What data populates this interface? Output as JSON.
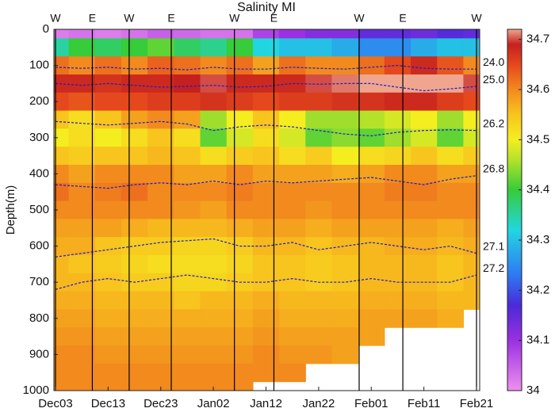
{
  "chart_data": {
    "type": "heatmap",
    "title": "Salinity MI",
    "y_label": "Depth(m)",
    "xlim": [
      -0.3,
      80.6
    ],
    "xticks": [
      {
        "value": 0,
        "label": "Dec03"
      },
      {
        "value": 10,
        "label": "Dec13"
      },
      {
        "value": 20,
        "label": "Dec23"
      },
      {
        "value": 30,
        "label": "Jan02"
      },
      {
        "value": 40,
        "label": "Jan12"
      },
      {
        "value": 50,
        "label": "Jan22"
      },
      {
        "value": 60,
        "label": "Feb01"
      },
      {
        "value": 70,
        "label": "Feb11"
      },
      {
        "value": 80,
        "label": "Feb21"
      }
    ],
    "ylim": [
      0,
      1000
    ],
    "y_reversed": true,
    "yticks": [
      0,
      100,
      200,
      300,
      400,
      500,
      600,
      700,
      800,
      900,
      1000
    ],
    "clim": [
      34,
      34.72
    ],
    "cticks": [
      34,
      34.1,
      34.2,
      34.3,
      34.4,
      34.5,
      34.6,
      34.7
    ],
    "colormap": [
      {
        "value": 34.0,
        "color": "#ee90ee"
      },
      {
        "value": 34.1,
        "color": "#9b30e0"
      },
      {
        "value": 34.17,
        "color": "#4a2ad8"
      },
      {
        "value": 34.23,
        "color": "#2f78f2"
      },
      {
        "value": 34.32,
        "color": "#22d6e0"
      },
      {
        "value": 34.4,
        "color": "#36cc3a"
      },
      {
        "value": 34.46,
        "color": "#b4e22a"
      },
      {
        "value": 34.5,
        "color": "#f4ee20"
      },
      {
        "value": 34.55,
        "color": "#f8c41e"
      },
      {
        "value": 34.6,
        "color": "#f28a1e"
      },
      {
        "value": 34.65,
        "color": "#e4481c"
      },
      {
        "value": 34.69,
        "color": "#c42020"
      },
      {
        "value": 34.72,
        "color": "#f0a68e"
      }
    ],
    "x": [
      0,
      5,
      10,
      15,
      20,
      25,
      30,
      35,
      40,
      45,
      50,
      55,
      60,
      65,
      70,
      75,
      80
    ],
    "depths": [
      0,
      50,
      100,
      150,
      200,
      250,
      300,
      350,
      400,
      450,
      500,
      550,
      600,
      650,
      700,
      750,
      800,
      850,
      900,
      950,
      1000
    ],
    "z": [
      [
        34.02,
        34.03,
        34.02,
        34.03,
        34.05,
        34.04,
        34.03,
        34.03,
        34.08,
        34.1,
        34.12,
        34.12,
        34.15,
        34.15,
        34.14,
        34.16,
        34.15
      ],
      [
        34.35,
        34.4,
        34.38,
        34.4,
        34.42,
        34.38,
        34.36,
        34.4,
        34.32,
        34.3,
        34.3,
        34.28,
        34.25,
        34.25,
        34.28,
        34.3,
        34.3
      ],
      [
        34.62,
        34.6,
        34.62,
        34.6,
        34.63,
        34.62,
        34.6,
        34.62,
        34.58,
        34.62,
        34.6,
        34.6,
        34.62,
        34.65,
        34.68,
        34.64,
        34.6
      ],
      [
        34.68,
        34.68,
        34.67,
        34.68,
        34.68,
        34.69,
        34.7,
        34.68,
        34.68,
        34.68,
        34.7,
        34.71,
        34.72,
        34.74,
        34.75,
        34.72,
        34.7
      ],
      [
        34.65,
        34.64,
        34.65,
        34.65,
        34.66,
        34.66,
        34.67,
        34.66,
        34.65,
        34.66,
        34.66,
        34.67,
        34.67,
        34.68,
        34.68,
        34.66,
        34.65
      ],
      [
        34.55,
        34.52,
        34.55,
        34.58,
        34.6,
        34.58,
        34.45,
        34.5,
        34.55,
        34.5,
        34.45,
        34.45,
        34.46,
        34.48,
        34.5,
        34.45,
        34.5
      ],
      [
        34.5,
        34.52,
        34.5,
        34.52,
        34.55,
        34.52,
        34.42,
        34.48,
        34.52,
        34.48,
        34.42,
        34.44,
        34.42,
        34.45,
        34.48,
        34.42,
        34.48
      ],
      [
        34.55,
        34.54,
        34.55,
        34.55,
        34.56,
        34.55,
        34.52,
        34.54,
        34.55,
        34.52,
        34.54,
        34.5,
        34.52,
        34.53,
        34.55,
        34.52,
        34.54
      ],
      [
        34.6,
        34.58,
        34.6,
        34.6,
        34.6,
        34.58,
        34.58,
        34.6,
        34.58,
        34.58,
        34.58,
        34.57,
        34.58,
        34.6,
        34.6,
        34.58,
        34.58
      ],
      [
        34.62,
        34.6,
        34.61,
        34.62,
        34.6,
        34.6,
        34.6,
        34.61,
        34.6,
        34.6,
        34.6,
        34.6,
        34.6,
        34.61,
        34.61,
        34.6,
        34.6
      ],
      [
        34.6,
        34.6,
        34.6,
        34.6,
        34.6,
        34.59,
        34.58,
        34.6,
        34.6,
        34.6,
        34.59,
        34.6,
        34.6,
        34.6,
        34.6,
        34.6,
        34.6
      ],
      [
        34.58,
        34.58,
        34.58,
        34.57,
        34.56,
        34.56,
        34.56,
        34.57,
        34.58,
        34.58,
        34.57,
        34.58,
        34.58,
        34.58,
        34.58,
        34.57,
        34.58
      ],
      [
        34.57,
        34.57,
        34.55,
        34.54,
        34.54,
        34.53,
        34.53,
        34.54,
        34.56,
        34.56,
        34.55,
        34.56,
        34.56,
        34.57,
        34.57,
        34.56,
        34.57
      ],
      [
        34.56,
        34.55,
        34.54,
        34.53,
        34.52,
        34.52,
        34.52,
        34.53,
        34.55,
        34.55,
        34.54,
        34.55,
        34.56,
        34.56,
        34.56,
        34.55,
        34.56
      ],
      [
        34.56,
        34.56,
        34.55,
        34.54,
        34.54,
        34.53,
        34.53,
        34.54,
        34.55,
        34.55,
        34.54,
        34.55,
        34.56,
        34.56,
        34.56,
        34.55,
        34.56
      ],
      [
        34.57,
        34.57,
        34.56,
        34.56,
        34.56,
        34.55,
        34.56,
        34.56,
        34.57,
        34.56,
        34.56,
        34.56,
        34.57,
        34.57,
        34.57,
        34.56,
        34.56
      ],
      [
        34.58,
        34.58,
        34.57,
        34.57,
        34.57,
        34.57,
        34.57,
        34.57,
        34.58,
        34.57,
        34.57,
        34.57,
        34.58,
        34.58,
        34.58,
        34.57,
        null
      ],
      [
        34.59,
        34.59,
        34.58,
        34.58,
        34.58,
        34.58,
        34.58,
        34.58,
        34.59,
        34.58,
        34.58,
        34.58,
        34.58,
        null,
        null,
        null,
        null
      ],
      [
        34.6,
        34.6,
        34.59,
        34.59,
        34.59,
        34.59,
        34.59,
        34.59,
        34.6,
        34.59,
        34.59,
        34.58,
        null,
        null,
        null,
        null,
        null
      ],
      [
        34.6,
        34.6,
        34.6,
        34.6,
        34.6,
        34.6,
        34.6,
        34.6,
        34.6,
        34.6,
        null,
        null,
        null,
        null,
        null,
        null,
        null
      ],
      [
        34.6,
        34.6,
        34.6,
        34.6,
        34.6,
        34.6,
        34.6,
        34.6,
        null,
        null,
        null,
        null,
        null,
        null,
        null,
        null,
        null
      ]
    ],
    "isopycnal_color": "#1a1acc",
    "isopycnals": [
      {
        "name": "24.0",
        "depths": [
          105,
          108,
          105,
          110,
          108,
          112,
          105,
          110,
          110,
          105,
          108,
          110,
          105,
          100,
          108,
          110,
          110
        ]
      },
      {
        "name": "25.0",
        "depths": [
          150,
          155,
          150,
          155,
          160,
          158,
          155,
          160,
          158,
          150,
          152,
          150,
          150,
          160,
          170,
          165,
          158
        ]
      },
      {
        "name": "26.2",
        "depths": [
          255,
          260,
          265,
          260,
          255,
          262,
          280,
          270,
          265,
          270,
          280,
          290,
          295,
          285,
          280,
          278,
          280
        ]
      },
      {
        "name": "26.8",
        "depths": [
          430,
          435,
          440,
          430,
          425,
          430,
          420,
          430,
          420,
          425,
          420,
          415,
          410,
          420,
          430,
          415,
          405
        ]
      },
      {
        "name": "27.1",
        "depths": [
          630,
          620,
          610,
          600,
          590,
          585,
          580,
          600,
          600,
          590,
          610,
          600,
          590,
          600,
          610,
          600,
          620
        ]
      },
      {
        "name": "27.2",
        "depths": [
          720,
          700,
          690,
          700,
          690,
          680,
          690,
          700,
          700,
          690,
          700,
          700,
          690,
          700,
          700,
          700,
          680
        ]
      }
    ],
    "passes": [
      {
        "x": 0,
        "label": "W"
      },
      {
        "x": 7,
        "label": "E"
      },
      {
        "x": 14,
        "label": "W"
      },
      {
        "x": 22,
        "label": "E"
      },
      {
        "x": 34,
        "label": "W"
      },
      {
        "x": 41.5,
        "label": "E"
      },
      {
        "x": 57.7,
        "label": "W"
      },
      {
        "x": 66,
        "label": "E"
      },
      {
        "x": 80,
        "label": "W"
      }
    ]
  }
}
